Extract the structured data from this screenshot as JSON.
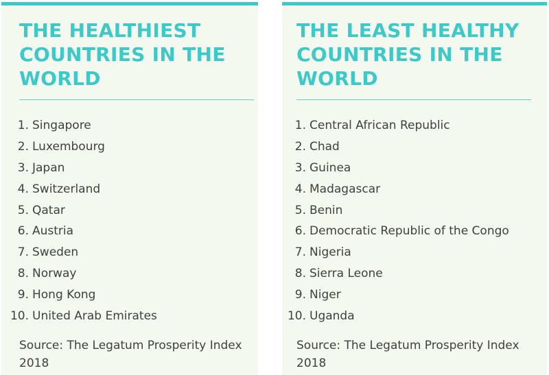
{
  "colors": {
    "accent": "#3ec8c8",
    "panel_background": "#f3f9ee",
    "text": "#404040"
  },
  "healthiest": {
    "title": "THE HEALTHIEST COUNTRIES IN THE WORLD",
    "items": [
      {
        "num": "1.",
        "name": "Singapore"
      },
      {
        "num": "2.",
        "name": "Luxembourg"
      },
      {
        "num": "3.",
        "name": "Japan"
      },
      {
        "num": "4.",
        "name": "Switzerland"
      },
      {
        "num": "5.",
        "name": "Qatar"
      },
      {
        "num": "6.",
        "name": "Austria"
      },
      {
        "num": "7.",
        "name": "Sweden"
      },
      {
        "num": "8.",
        "name": "Norway"
      },
      {
        "num": "9.",
        "name": "Hong Kong"
      },
      {
        "num": "10.",
        "name": "United Arab Emirates"
      }
    ],
    "source": "Source: The Legatum Prosperity Index 2018"
  },
  "least_healthy": {
    "title": "THE LEAST HEALTHY COUNTRIES IN THE WORLD",
    "items": [
      {
        "num": "1.",
        "name": "Central African Republic"
      },
      {
        "num": "2.",
        "name": "Chad"
      },
      {
        "num": "3.",
        "name": "Guinea"
      },
      {
        "num": "4.",
        "name": "Madagascar"
      },
      {
        "num": "5.",
        "name": "Benin"
      },
      {
        "num": "6.",
        "name": "Democratic Republic of the Congo"
      },
      {
        "num": "7.",
        "name": "Nigeria"
      },
      {
        "num": "8.",
        "name": "Sierra Leone"
      },
      {
        "num": "9.",
        "name": "Niger"
      },
      {
        "num": "10.",
        "name": "Uganda"
      }
    ],
    "source": "Source: The Legatum Prosperity Index 2018"
  }
}
